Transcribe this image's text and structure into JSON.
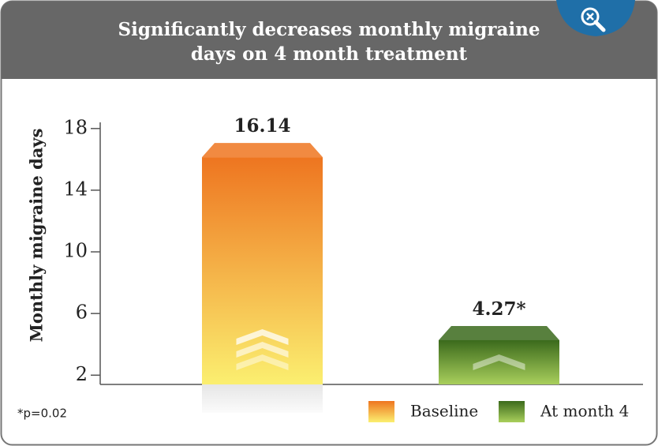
{
  "chart_data": {
    "type": "bar",
    "title_lines": [
      "Significantly decreases monthly migraine",
      "days on 4 month treatment"
    ],
    "ylabel": "Monthly migraine days",
    "categories": [
      "Baseline",
      "At month 4"
    ],
    "values": [
      16.14,
      4.27
    ],
    "value_labels": [
      "16.14",
      "4.27*"
    ],
    "colors": [
      {
        "top": "#ee7520",
        "bottom": "#fbef70"
      },
      {
        "top": "#3b6a1c",
        "bottom": "#a9cf5c"
      }
    ],
    "ylim": [
      1.4,
      18.4
    ],
    "yticks": [
      2,
      6,
      10,
      14,
      18
    ],
    "footnote": "*p=0.02"
  }
}
